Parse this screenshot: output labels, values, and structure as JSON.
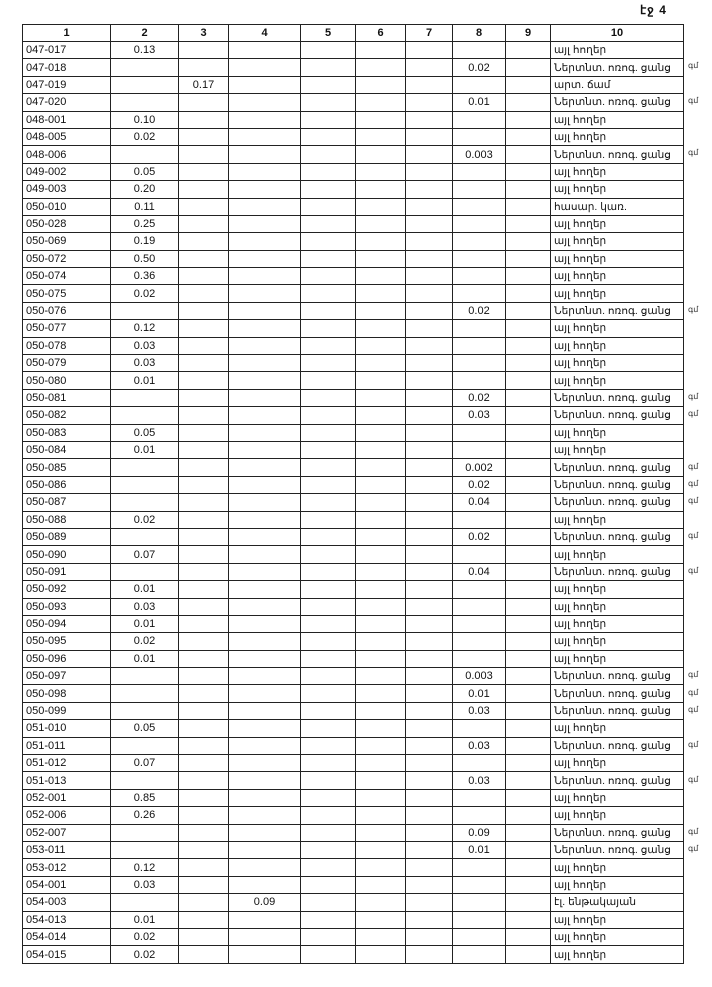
{
  "page_label": "էջ 4",
  "columns": [
    "1",
    "2",
    "3",
    "4",
    "5",
    "6",
    "7",
    "8",
    "9",
    "10"
  ],
  "rows": [
    {
      "c1": "047-017",
      "c2": "0.13",
      "c3": "",
      "c4": "",
      "c8": "",
      "c10": "այլ հողեր",
      "note": ""
    },
    {
      "c1": "047-018",
      "c2": "",
      "c3": "",
      "c4": "",
      "c8": "0.02",
      "c10": "Ներտնտ. ոռոգ. ցանց",
      "note": "գմ"
    },
    {
      "c1": "047-019",
      "c2": "",
      "c3": "0.17",
      "c4": "",
      "c8": "",
      "c10": "արտ. ճամ",
      "note": ""
    },
    {
      "c1": "047-020",
      "c2": "",
      "c3": "",
      "c4": "",
      "c8": "0.01",
      "c10": "Ներտնտ. ոռոգ. ցանց",
      "note": "գմ"
    },
    {
      "c1": "048-001",
      "c2": "0.10",
      "c3": "",
      "c4": "",
      "c8": "",
      "c10": "այլ հողեր",
      "note": ""
    },
    {
      "c1": "048-005",
      "c2": "0.02",
      "c3": "",
      "c4": "",
      "c8": "",
      "c10": "այլ հողեր",
      "note": ""
    },
    {
      "c1": "048-006",
      "c2": "",
      "c3": "",
      "c4": "",
      "c8": "0.003",
      "c10": "Ներտնտ. ոռոգ. ցանց",
      "note": "գմ"
    },
    {
      "c1": "049-002",
      "c2": "0.05",
      "c3": "",
      "c4": "",
      "c8": "",
      "c10": "այլ հողեր",
      "note": ""
    },
    {
      "c1": "049-003",
      "c2": "0.20",
      "c3": "",
      "c4": "",
      "c8": "",
      "c10": "այլ հողեր",
      "note": ""
    },
    {
      "c1": "050-010",
      "c2": "0.11",
      "c3": "",
      "c4": "",
      "c8": "",
      "c10": "հասար. կառ.",
      "note": ""
    },
    {
      "c1": "050-028",
      "c2": "0.25",
      "c3": "",
      "c4": "",
      "c8": "",
      "c10": "այլ հողեր",
      "note": ""
    },
    {
      "c1": "050-069",
      "c2": "0.19",
      "c3": "",
      "c4": "",
      "c8": "",
      "c10": "այլ հողեր",
      "note": ""
    },
    {
      "c1": "050-072",
      "c2": "0.50",
      "c3": "",
      "c4": "",
      "c8": "",
      "c10": "այլ հողեր",
      "note": ""
    },
    {
      "c1": "050-074",
      "c2": "0.36",
      "c3": "",
      "c4": "",
      "c8": "",
      "c10": "այլ հողեր",
      "note": ""
    },
    {
      "c1": "050-075",
      "c2": "0.02",
      "c3": "",
      "c4": "",
      "c8": "",
      "c10": "այլ հողեր",
      "note": ""
    },
    {
      "c1": "050-076",
      "c2": "",
      "c3": "",
      "c4": "",
      "c8": "0.02",
      "c10": "Ներտնտ. ոռոգ. ցանց",
      "note": "գմ"
    },
    {
      "c1": "050-077",
      "c2": "0.12",
      "c3": "",
      "c4": "",
      "c8": "",
      "c10": "այլ հողեր",
      "note": ""
    },
    {
      "c1": "050-078",
      "c2": "0.03",
      "c3": "",
      "c4": "",
      "c8": "",
      "c10": "այլ հողեր",
      "note": ""
    },
    {
      "c1": "050-079",
      "c2": "0.03",
      "c3": "",
      "c4": "",
      "c8": "",
      "c10": "այլ հողեր",
      "note": ""
    },
    {
      "c1": "050-080",
      "c2": "0.01",
      "c3": "",
      "c4": "",
      "c8": "",
      "c10": "այլ հողեր",
      "note": ""
    },
    {
      "c1": "050-081",
      "c2": "",
      "c3": "",
      "c4": "",
      "c8": "0.02",
      "c10": "Ներտնտ. ոռոգ. ցանց",
      "note": "գմ"
    },
    {
      "c1": "050-082",
      "c2": "",
      "c3": "",
      "c4": "",
      "c8": "0.03",
      "c10": "Ներտնտ. ոռոգ. ցանց",
      "note": "գմ"
    },
    {
      "c1": "050-083",
      "c2": "0.05",
      "c3": "",
      "c4": "",
      "c8": "",
      "c10": "այլ հողեր",
      "note": ""
    },
    {
      "c1": "050-084",
      "c2": "0.01",
      "c3": "",
      "c4": "",
      "c8": "",
      "c10": "այլ հողեր",
      "note": ""
    },
    {
      "c1": "050-085",
      "c2": "",
      "c3": "",
      "c4": "",
      "c8": "0.002",
      "c10": "Ներտնտ. ոռոգ. ցանց",
      "note": "գմ"
    },
    {
      "c1": "050-086",
      "c2": "",
      "c3": "",
      "c4": "",
      "c8": "0.02",
      "c10": "Ներտնտ. ոռոգ. ցանց",
      "note": "գմ"
    },
    {
      "c1": "050-087",
      "c2": "",
      "c3": "",
      "c4": "",
      "c8": "0.04",
      "c10": "Ներտնտ. ոռոգ. ցանց",
      "note": "գմ"
    },
    {
      "c1": "050-088",
      "c2": "0.02",
      "c3": "",
      "c4": "",
      "c8": "",
      "c10": "այլ հողեր",
      "note": ""
    },
    {
      "c1": "050-089",
      "c2": "",
      "c3": "",
      "c4": "",
      "c8": "0.02",
      "c10": "Ներտնտ. ոռոգ. ցանց",
      "note": "գմ"
    },
    {
      "c1": "050-090",
      "c2": "0.07",
      "c3": "",
      "c4": "",
      "c8": "",
      "c10": "այլ հողեր",
      "note": ""
    },
    {
      "c1": "050-091",
      "c2": "",
      "c3": "",
      "c4": "",
      "c8": "0.04",
      "c10": "Ներտնտ. ոռոգ. ցանց",
      "note": "գմ"
    },
    {
      "c1": "050-092",
      "c2": "0.01",
      "c3": "",
      "c4": "",
      "c8": "",
      "c10": "այլ հողեր",
      "note": ""
    },
    {
      "c1": "050-093",
      "c2": "0.03",
      "c3": "",
      "c4": "",
      "c8": "",
      "c10": "այլ հողեր",
      "note": ""
    },
    {
      "c1": "050-094",
      "c2": "0.01",
      "c3": "",
      "c4": "",
      "c8": "",
      "c10": "այլ հողեր",
      "note": ""
    },
    {
      "c1": "050-095",
      "c2": "0.02",
      "c3": "",
      "c4": "",
      "c8": "",
      "c10": "այլ հողեր",
      "note": ""
    },
    {
      "c1": "050-096",
      "c2": "0.01",
      "c3": "",
      "c4": "",
      "c8": "",
      "c10": "այլ հողեր",
      "note": ""
    },
    {
      "c1": "050-097",
      "c2": "",
      "c3": "",
      "c4": "",
      "c8": "0.003",
      "c10": "Ներտնտ. ոռոգ. ցանց",
      "note": "գմ"
    },
    {
      "c1": "050-098",
      "c2": "",
      "c3": "",
      "c4": "",
      "c8": "0.01",
      "c10": "Ներտնտ. ոռոգ. ցանց",
      "note": "գմ"
    },
    {
      "c1": "050-099",
      "c2": "",
      "c3": "",
      "c4": "",
      "c8": "0.03",
      "c10": "Ներտնտ. ոռոգ. ցանց",
      "note": "գմ"
    },
    {
      "c1": "051-010",
      "c2": "0.05",
      "c3": "",
      "c4": "",
      "c8": "",
      "c10": "այլ հողեր",
      "note": ""
    },
    {
      "c1": "051-011",
      "c2": "",
      "c3": "",
      "c4": "",
      "c8": "0.03",
      "c10": "Ներտնտ. ոռոգ. ցանց",
      "note": "գմ"
    },
    {
      "c1": "051-012",
      "c2": "0.07",
      "c3": "",
      "c4": "",
      "c8": "",
      "c10": "այլ հողեր",
      "note": ""
    },
    {
      "c1": "051-013",
      "c2": "",
      "c3": "",
      "c4": "",
      "c8": "0.03",
      "c10": "Ներտնտ. ոռոգ. ցանց",
      "note": "գմ"
    },
    {
      "c1": "052-001",
      "c2": "0.85",
      "c3": "",
      "c4": "",
      "c8": "",
      "c10": "այլ հողեր",
      "note": ""
    },
    {
      "c1": "052-006",
      "c2": "0.26",
      "c3": "",
      "c4": "",
      "c8": "",
      "c10": "այլ հողեր",
      "note": ""
    },
    {
      "c1": "052-007",
      "c2": "",
      "c3": "",
      "c4": "",
      "c8": "0.09",
      "c10": "Ներտնտ. ոռոգ. ցանց",
      "note": "գմ"
    },
    {
      "c1": "053-011",
      "c2": "",
      "c3": "",
      "c4": "",
      "c8": "0.01",
      "c10": "Ներտնտ. ոռոգ. ցանց",
      "note": "գմ"
    },
    {
      "c1": "053-012",
      "c2": "0.12",
      "c3": "",
      "c4": "",
      "c8": "",
      "c10": "այլ հողեր",
      "note": ""
    },
    {
      "c1": "054-001",
      "c2": "0.03",
      "c3": "",
      "c4": "",
      "c8": "",
      "c10": "այլ հողեր",
      "note": ""
    },
    {
      "c1": "054-003",
      "c2": "",
      "c3": "",
      "c4": "0.09",
      "c8": "",
      "c10": "էլ. ենթակայան",
      "note": ""
    },
    {
      "c1": "054-013",
      "c2": "0.01",
      "c3": "",
      "c4": "",
      "c8": "",
      "c10": "այլ հողեր",
      "note": ""
    },
    {
      "c1": "054-014",
      "c2": "0.02",
      "c3": "",
      "c4": "",
      "c8": "",
      "c10": "այլ հողեր",
      "note": ""
    },
    {
      "c1": "054-015",
      "c2": "0.02",
      "c3": "",
      "c4": "",
      "c8": "",
      "c10": "այլ հողեր",
      "note": ""
    }
  ]
}
